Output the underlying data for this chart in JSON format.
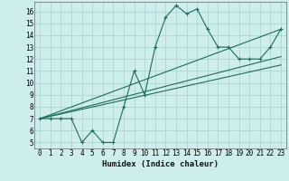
{
  "xlabel": "Humidex (Indice chaleur)",
  "ylabel": "",
  "background_color": "#ceeeed",
  "grid_color": "#aed4d3",
  "line_color": "#1e6b5e",
  "xlim": [
    -0.5,
    23.5
  ],
  "ylim": [
    4.5,
    16.8
  ],
  "xticks": [
    0,
    1,
    2,
    3,
    4,
    5,
    6,
    7,
    8,
    9,
    10,
    11,
    12,
    13,
    14,
    15,
    16,
    17,
    18,
    19,
    20,
    21,
    22,
    23
  ],
  "yticks": [
    5,
    6,
    7,
    8,
    9,
    10,
    11,
    12,
    13,
    14,
    15,
    16
  ],
  "series1_x": [
    0,
    1,
    2,
    3,
    4,
    5,
    6,
    7,
    8,
    9,
    10,
    11,
    12,
    13,
    14,
    15,
    16,
    17,
    18,
    19,
    20,
    21,
    22,
    23
  ],
  "series1_y": [
    7,
    7,
    7,
    7,
    5,
    6,
    5,
    5,
    8,
    11,
    9,
    13,
    15.5,
    16.5,
    15.8,
    16.2,
    14.5,
    13,
    13,
    12,
    12,
    12,
    13,
    14.5
  ],
  "series2_x": [
    0,
    23
  ],
  "series2_y": [
    7.0,
    14.5
  ],
  "series3_x": [
    0,
    23
  ],
  "series3_y": [
    7.0,
    12.2
  ],
  "series4_x": [
    0,
    23
  ],
  "series4_y": [
    7.0,
    11.5
  ]
}
